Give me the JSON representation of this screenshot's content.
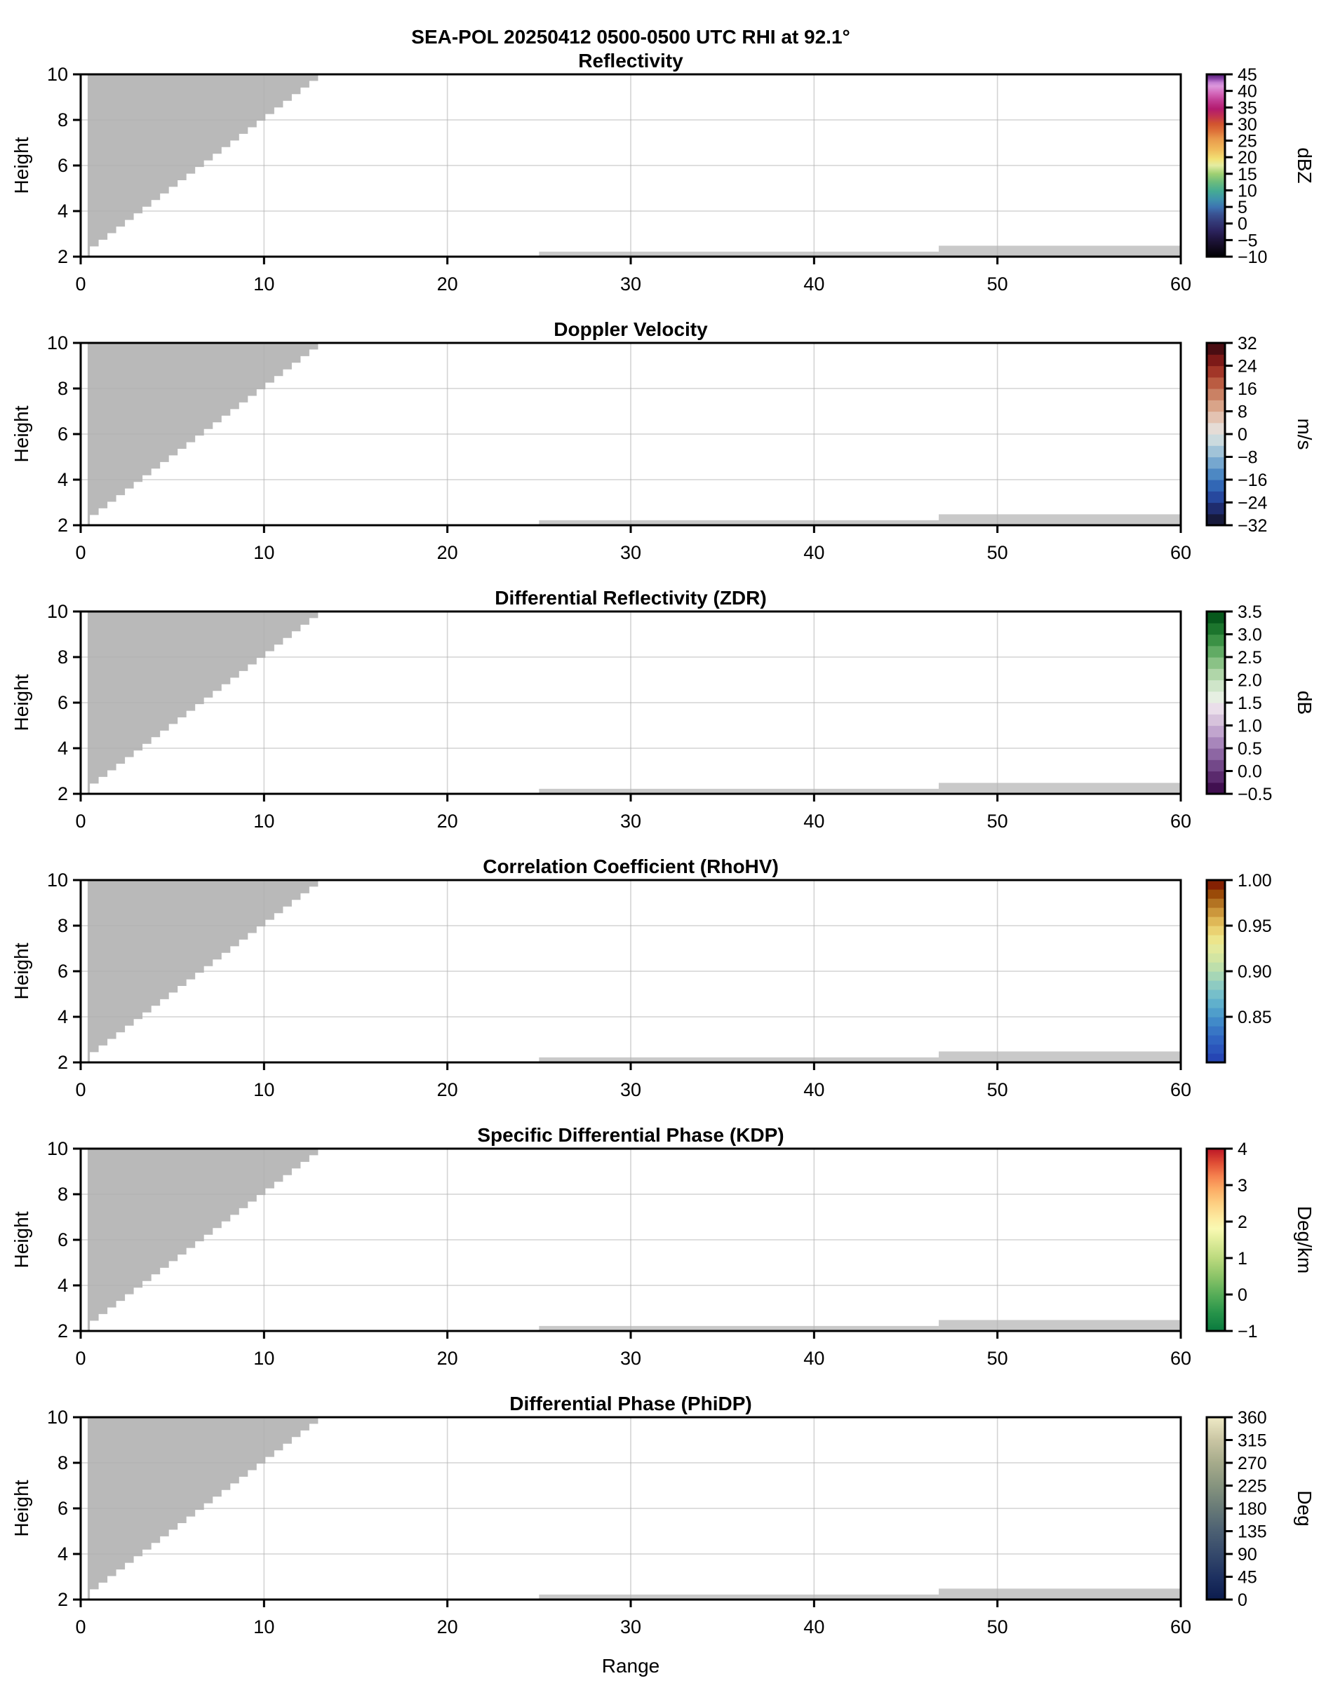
{
  "title": "SEA-POL 20250412 0500-0500 UTC RHI at 92.1°",
  "axes": {
    "xlabel": "Range",
    "ylabel": "Height",
    "x_tick_labels": [
      "0",
      "10",
      "20",
      "30",
      "40",
      "50",
      "60"
    ],
    "x_tick_values": [
      0,
      10,
      20,
      30,
      40,
      50,
      60
    ],
    "y_tick_labels": [
      "2",
      "4",
      "6",
      "8",
      "10"
    ],
    "y_tick_values": [
      2,
      4,
      6,
      8,
      10
    ],
    "x_range": [
      0,
      60
    ],
    "y_range": [
      2,
      10
    ],
    "x_gridlines": [
      10,
      20,
      30,
      40,
      50
    ],
    "y_gridlines": [
      4,
      6,
      8
    ]
  },
  "panels": [
    {
      "id": "reflectivity",
      "title": "Reflectivity",
      "colorbar": {
        "vmin": -10,
        "vmax": 45,
        "unit": "dBZ",
        "style": "smooth",
        "tick_values": [
          45,
          40,
          35,
          30,
          25,
          20,
          15,
          10,
          5,
          0,
          -5,
          -10
        ],
        "tick_labels": [
          "45",
          "40",
          "35",
          "30",
          "25",
          "20",
          "15",
          "10",
          "5",
          "0",
          "−5",
          "−10"
        ],
        "colors": [
          [
            0,
            "#000003"
          ],
          [
            0.05,
            "#120b20"
          ],
          [
            0.1,
            "#201640"
          ],
          [
            0.145,
            "#2c2560"
          ],
          [
            0.19,
            "#343a78"
          ],
          [
            0.235,
            "#3a5494"
          ],
          [
            0.27,
            "#3d72b0"
          ],
          [
            0.315,
            "#3f93ac"
          ],
          [
            0.36,
            "#45ab93"
          ],
          [
            0.41,
            "#6cbc7c"
          ],
          [
            0.455,
            "#a0d072"
          ],
          [
            0.5,
            "#e4eca2"
          ],
          [
            0.535,
            "#f2e175"
          ],
          [
            0.59,
            "#f0b95a"
          ],
          [
            0.645,
            "#e99a4c"
          ],
          [
            0.69,
            "#dd7038"
          ],
          [
            0.73,
            "#d1532f"
          ],
          [
            0.77,
            "#c23350"
          ],
          [
            0.81,
            "#b31b6e"
          ],
          [
            0.855,
            "#c13b92"
          ],
          [
            0.895,
            "#d366b8"
          ],
          [
            0.935,
            "#dd97dc"
          ],
          [
            0.955,
            "#c47fd2"
          ],
          [
            0.975,
            "#8b45a8"
          ],
          [
            1,
            "#4f1a70"
          ]
        ]
      }
    },
    {
      "id": "doppler-velocity",
      "title": "Doppler Velocity",
      "colorbar": {
        "vmin": -32,
        "vmax": 32,
        "unit": "m/s",
        "style": "steps",
        "tick_values": [
          32,
          24,
          16,
          8,
          0,
          -8,
          -16,
          -24,
          -32
        ],
        "tick_labels": [
          "32",
          "24",
          "16",
          "8",
          "0",
          "−8",
          "−16",
          "−24",
          "−32"
        ],
        "colors": [
          "#171a3c",
          "#1f2c6e",
          "#27489e",
          "#3267b5",
          "#4d88c3",
          "#76a7cf",
          "#a1c3d8",
          "#cbdade",
          "#e5dcd6",
          "#e3c3b2",
          "#d9a489",
          "#ca8164",
          "#ba5c42",
          "#a23628",
          "#7d1a18",
          "#4a0d12"
        ]
      }
    },
    {
      "id": "zdr",
      "title": "Differential Reflectivity (ZDR)",
      "colorbar": {
        "vmin": -0.5,
        "vmax": 3.5,
        "unit": "dB",
        "style": "steps",
        "tick_values": [
          3.5,
          3.0,
          2.5,
          2.0,
          1.5,
          1.0,
          0.5,
          0.0,
          -0.5
        ],
        "tick_labels": [
          "3.5",
          "3.0",
          "2.5",
          "2.0",
          "1.5",
          "1.0",
          "0.5",
          "0.0",
          "−0.5"
        ],
        "colors": [
          "#411050",
          "#5a2a6d",
          "#734889",
          "#8d66a3",
          "#a886bb",
          "#c1a5ce",
          "#d7c3dc",
          "#eadeea",
          "#e6efe2",
          "#cfe5c9",
          "#b0d6a9",
          "#8ac286",
          "#61ab64",
          "#3b9145",
          "#1c752d",
          "#07581c"
        ]
      }
    },
    {
      "id": "rhohv",
      "title": "Correlation Coefficient (RhoHV)",
      "colorbar": {
        "vmin": 0.8,
        "vmax": 1.0,
        "unit": null,
        "style": "steps",
        "tick_values": [
          1.0,
          0.95,
          0.9,
          0.85
        ],
        "tick_labels": [
          "1.00",
          "0.95",
          "0.90",
          "0.85"
        ],
        "colors": [
          "#2646b4",
          "#2b55bb",
          "#3064c1",
          "#3876c5",
          "#418ac9",
          "#4f9ecb",
          "#60b0cc",
          "#76bfca",
          "#8ecbc2",
          "#a6d6b6",
          "#bedfab",
          "#d3e5a2",
          "#e3e99c",
          "#ece58b",
          "#ead272",
          "#dfb857",
          "#cc973c",
          "#b37322",
          "#9a4a08",
          "#842103"
        ]
      }
    },
    {
      "id": "kdp",
      "title": "Specific Differential Phase (KDP)",
      "colorbar": {
        "vmin": -1,
        "vmax": 4,
        "unit": "Deg/km",
        "style": "smooth",
        "tick_values": [
          4,
          3,
          2,
          1,
          0,
          -1
        ],
        "tick_labels": [
          "4",
          "3",
          "2",
          "1",
          "0",
          "−1"
        ],
        "colors": [
          [
            0,
            "#0a7a3e"
          ],
          [
            0.1,
            "#27944a"
          ],
          [
            0.2,
            "#57ad58"
          ],
          [
            0.3,
            "#8cc468"
          ],
          [
            0.4,
            "#bcda7e"
          ],
          [
            0.5,
            "#e2ee9d"
          ],
          [
            0.56,
            "#f9f9b2"
          ],
          [
            0.62,
            "#fdeaa0"
          ],
          [
            0.7,
            "#fdcf82"
          ],
          [
            0.78,
            "#fcab64"
          ],
          [
            0.85,
            "#f5814e"
          ],
          [
            0.92,
            "#e04f35"
          ],
          [
            1,
            "#bc1626"
          ]
        ]
      }
    },
    {
      "id": "phidp",
      "title": "Differential Phase (PhiDP)",
      "colorbar": {
        "vmin": 0,
        "vmax": 360,
        "unit": "Deg",
        "style": "smooth",
        "tick_values": [
          360,
          315,
          270,
          225,
          180,
          135,
          90,
          45,
          0
        ],
        "tick_labels": [
          "360",
          "315",
          "270",
          "225",
          "180",
          "135",
          "90",
          "45",
          "0"
        ],
        "colors": [
          [
            0,
            "#0c1c4e"
          ],
          [
            0.12,
            "#1d3060"
          ],
          [
            0.25,
            "#35496b"
          ],
          [
            0.38,
            "#4d6173"
          ],
          [
            0.5,
            "#687a77"
          ],
          [
            0.62,
            "#85937e"
          ],
          [
            0.75,
            "#a6ab8b"
          ],
          [
            0.87,
            "#c8c4a2"
          ],
          [
            1,
            "#efeac6"
          ]
        ]
      }
    }
  ],
  "chart_data": {
    "type": "heatmap",
    "subtype": "radar_rhi_multipanel",
    "suptitle": "SEA-POL 20250412 0500-0500 UTC RHI at 92.1°",
    "x": {
      "label": "Range",
      "range": [
        0,
        60
      ],
      "ticks": [
        0,
        10,
        20,
        30,
        40,
        50,
        60
      ],
      "gridlines": [
        10,
        20,
        30,
        40,
        50
      ]
    },
    "y": {
      "label": "Height",
      "range": [
        2,
        10
      ],
      "ticks": [
        2,
        4,
        6,
        8,
        10
      ],
      "gridlines": [
        4,
        6,
        8
      ]
    },
    "panels": [
      {
        "title": "Reflectivity",
        "units": "dBZ",
        "scale_min": -10,
        "scale_max": 45
      },
      {
        "title": "Doppler Velocity",
        "units": "m/s",
        "scale_min": -32,
        "scale_max": 32
      },
      {
        "title": "Differential Reflectivity (ZDR)",
        "units": "dB",
        "scale_min": -0.5,
        "scale_max": 3.5
      },
      {
        "title": "Correlation Coefficient (RhoHV)",
        "units": "",
        "scale_min": 0.8,
        "scale_max": 1.0
      },
      {
        "title": "Specific Differential Phase (KDP)",
        "units": "Deg/km",
        "scale_min": -1,
        "scale_max": 4
      },
      {
        "title": "Differential Phase (PhiDP)",
        "units": "Deg",
        "scale_min": 0,
        "scale_max": 360
      }
    ],
    "data_regions": {
      "note": "All six panels show identical gray no-data/masked regions; no colored echo values are visible in any panel.",
      "mask_wedge": {
        "left_x": 0.38,
        "base_y": 2.0,
        "stair_from": [
          0.5,
          2.45
        ],
        "stair_to": [
          12.95,
          10.0
        ],
        "steps": 26
      },
      "low_strips": [
        {
          "x": [
            25.0,
            46.8
          ],
          "y": [
            2.0,
            2.22
          ]
        },
        {
          "x": [
            46.8,
            60.0
          ],
          "y": [
            2.0,
            2.48
          ]
        }
      ],
      "mask_color": "#b9b9b9",
      "strip_color": "#c9c9c9",
      "grid_color": "#b0b0b0"
    }
  }
}
